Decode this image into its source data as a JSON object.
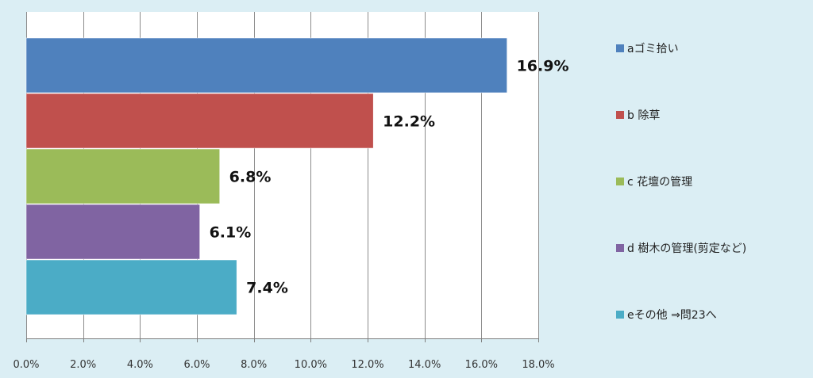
{
  "chart_data": {
    "type": "bar",
    "orientation": "horizontal",
    "categories": [
      "aゴミ拾い",
      "b 除草",
      "c 花壇の管理",
      "d 樹木の管理(剪定など)",
      "eその他 ⇒問23へ"
    ],
    "values": [
      16.9,
      12.2,
      6.8,
      6.1,
      7.4
    ],
    "data_labels": [
      "16.9%",
      "12.2%",
      "6.8%",
      "6.1%",
      "7.4%"
    ],
    "colors": [
      "#4f81bd",
      "#c0504d",
      "#9bbb59",
      "#8064a2",
      "#4bacc6"
    ],
    "xlim": [
      0,
      18
    ],
    "x_ticks": [
      0,
      2,
      4,
      6,
      8,
      10,
      12,
      14,
      16,
      18
    ],
    "x_tick_labels": [
      "0.0%",
      "2.0%",
      "4.0%",
      "6.0%",
      "8.0%",
      "10.0%",
      "12.0%",
      "14.0%",
      "16.0%",
      "18.0%"
    ],
    "grid": true,
    "legend_position": "right",
    "title": "",
    "xlabel": "",
    "ylabel": ""
  }
}
